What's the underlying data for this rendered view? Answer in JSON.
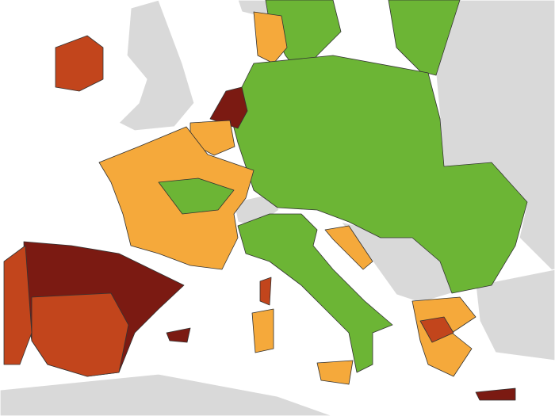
{
  "map": {
    "sea": "#ffffff",
    "other_land": "#d9d9d9",
    "fills": [
      "#7b1a12",
      "#c2451c",
      "#f5a93b",
      "#6cb535"
    ],
    "border": "#333333"
  }
}
